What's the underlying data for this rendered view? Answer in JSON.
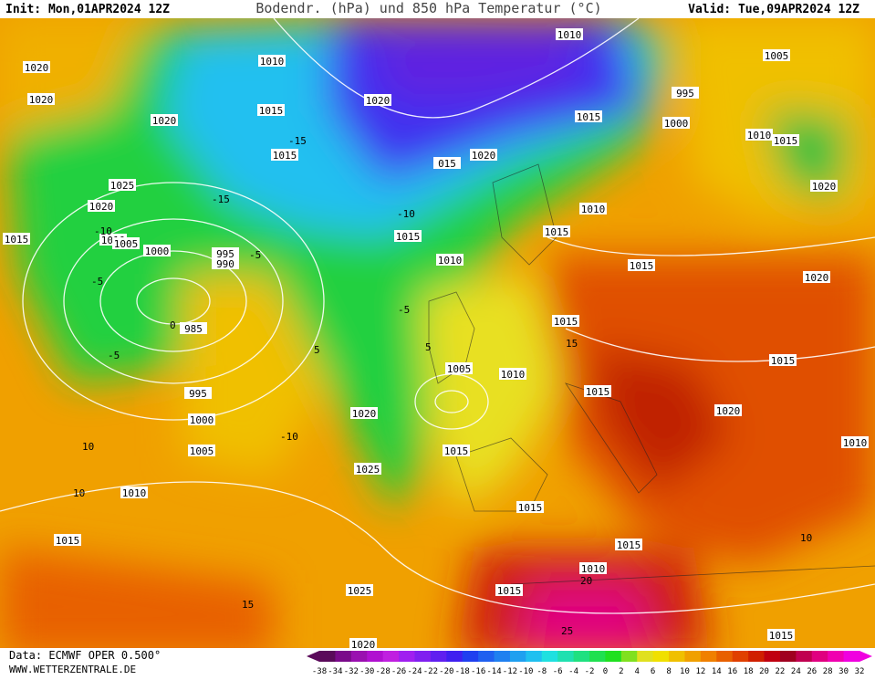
{
  "header": {
    "init": "Init: Mon,01APR2024 12Z",
    "title": "Bodendr. (hPa) und 850 hPa Temperatur (°C)",
    "valid": "Valid: Tue,09APR2024 12Z"
  },
  "footer": {
    "source": "Data: ECMWF OPER 0.500°",
    "website": "WWW.WETTERZENTRALE.DE"
  },
  "isobar_labels": [
    "1020",
    "1010",
    "1020",
    "1015",
    "1020",
    "1020",
    "1010",
    "1005",
    "995",
    "1015",
    "1000",
    "1010",
    "1015",
    "1015",
    "015",
    "1020",
    "1025",
    "1020",
    "1020",
    "1010",
    "1015",
    "1010",
    "1005",
    "1000",
    "995",
    "990",
    "1015",
    "1015",
    "1010",
    "1015",
    "1020",
    "985",
    "1015",
    "1015",
    "1005",
    "1010",
    "1015",
    "995",
    "1000",
    "1020",
    "1020",
    "1010",
    "1005",
    "1015",
    "1025",
    "1010",
    "1015",
    "1015",
    "1015",
    "1010",
    "1025",
    "1015",
    "1015",
    "1020"
  ],
  "temperature_labels": [
    "-15",
    "-15",
    "-10",
    "-10",
    "-5",
    "-5",
    "-5",
    "0",
    "-5",
    "5",
    "-10",
    "10",
    "5",
    "10",
    "15",
    "20",
    "25",
    "10",
    "15"
  ],
  "colorbar": {
    "labels": [
      -38,
      -34,
      -32,
      -30,
      -28,
      -26,
      -24,
      -22,
      -20,
      -18,
      -16,
      -14,
      -12,
      -10,
      -8,
      -6,
      -4,
      -2,
      0,
      2,
      4,
      6,
      8,
      10,
      12,
      14,
      16,
      18,
      20,
      22,
      24,
      26,
      28,
      30,
      32
    ],
    "colors": [
      "#5a0a5a",
      "#7a0a8a",
      "#9a10b0",
      "#b010d0",
      "#c020e0",
      "#a020f0",
      "#8020f0",
      "#6020f0",
      "#4020f0",
      "#2040f0",
      "#2060f0",
      "#2080f0",
      "#20a0f0",
      "#20c0f0",
      "#20e0e0",
      "#20e0b0",
      "#20e080",
      "#20e050",
      "#20e020",
      "#80e020",
      "#e0e020",
      "#f0e000",
      "#f0c000",
      "#f0a000",
      "#f08000",
      "#e86000",
      "#e04000",
      "#d02000",
      "#c00010",
      "#a00020",
      "#c00050",
      "#e00080",
      "#f000b0",
      "#f000e0"
    ]
  }
}
